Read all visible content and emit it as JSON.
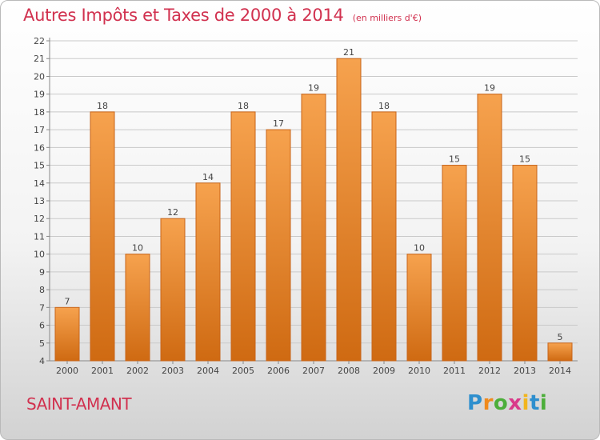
{
  "title": "Autres Impôts et Taxes de 2000 à 2014",
  "unit_note": "(en milliers d'€)",
  "commune": "SAINT-AMANT",
  "logo": {
    "letters": [
      "P",
      "r",
      "o",
      "x",
      "i",
      "t",
      "i"
    ],
    "colors": [
      "#2e8fce",
      "#f08a1c",
      "#4cae3a",
      "#d93a8a",
      "#f2b51d",
      "#2e8fce",
      "#4cae3a"
    ]
  },
  "colors": {
    "bar_top": "#f6a24e",
    "bar_bottom": "#cf6a12",
    "bar_edge": "#c8651a",
    "grid": "#c9c9c9",
    "accent": "#d1314f"
  },
  "chart_data": {
    "type": "bar",
    "categories": [
      "2000",
      "2001",
      "2002",
      "2003",
      "2004",
      "2005",
      "2006",
      "2007",
      "2008",
      "2009",
      "2010",
      "2011",
      "2012",
      "2013",
      "2014"
    ],
    "values": [
      7,
      18,
      10,
      12,
      14,
      18,
      17,
      19,
      21,
      18,
      10,
      15,
      19,
      15,
      5
    ],
    "data_labels": [
      "7",
      "18",
      "10",
      "12",
      "14",
      "18",
      "17",
      "19",
      "21",
      "18",
      "10",
      "15",
      "19",
      "15",
      "5"
    ],
    "ylim": [
      4,
      22
    ],
    "yticks": [
      "4",
      "5",
      "6",
      "7",
      "8",
      "9",
      "10",
      "11",
      "12",
      "13",
      "14",
      "15",
      "16",
      "17",
      "18",
      "19",
      "20",
      "21",
      "22"
    ],
    "grid": true
  }
}
